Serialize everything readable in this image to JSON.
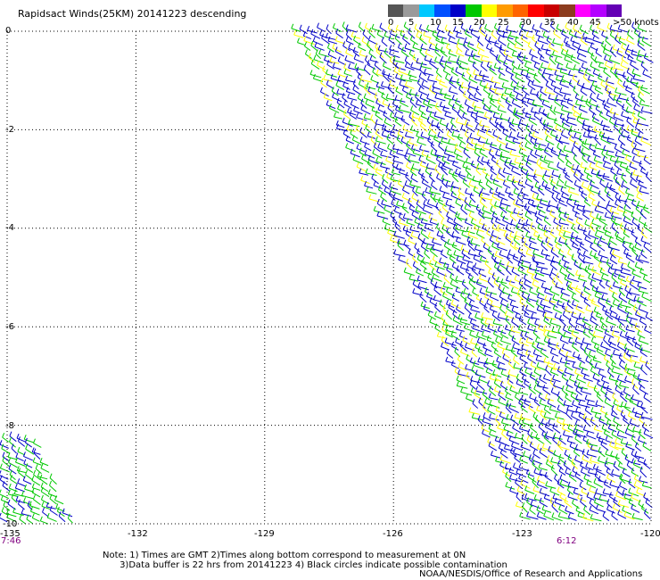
{
  "title": "Rapidsact Winds(25KM) 20141223 descending",
  "legend": {
    "labels": [
      "0",
      "5",
      "10",
      "15",
      "20",
      "25",
      "30",
      "35",
      "40",
      "45",
      ">50 knots"
    ],
    "colors": [
      "#555555",
      "#9a9a9a",
      "#00c8ff",
      "#0050ff",
      "#0000c8",
      "#00c800",
      "#ffff00",
      "#ff9b00",
      "#ff6400",
      "#ff0000",
      "#c80000",
      "#8c3c1e",
      "#ff00ff",
      "#b400ff",
      "#6400b4"
    ]
  },
  "axes": {
    "lat_labels": [
      "0",
      "-2",
      "-4",
      "-6",
      "-8",
      "-10"
    ],
    "lon_labels": [
      "-135",
      "-132",
      "-129",
      "-126",
      "-123",
      "-120"
    ]
  },
  "times": {
    "left": "7:46",
    "right": "6:12"
  },
  "notes": {
    "line1": "Note: 1) Times are GMT 2)Times along bottom correspond to measurement at 0N",
    "line2": "      3)Data buffer is 22 hrs from 20141223 4) Black circles indicate possible contamination"
  },
  "credit": "NOAA/NESDIS/Office of Research and Applications",
  "map_data": {
    "lon_range": [
      -135,
      -120
    ],
    "lat_range": [
      -10,
      0
    ],
    "swaths": [
      {
        "name": "main",
        "lat_top": 0,
        "lon_left_top": -128.2,
        "lat_bottom": -10,
        "lon_left_bottom": -122.8,
        "lon_right": -120,
        "colors": [
          "#0000c8",
          "#0000c8",
          "#00c800",
          "#0000c8",
          "#00c800",
          "#ffff00"
        ]
      },
      {
        "name": "corner",
        "lat_top": -8.3,
        "lon_left_top": -135,
        "lat_bottom": -10,
        "lon_left_bottom": -135,
        "lon_right_top": -134.3,
        "lon_right_bottom": -133.4,
        "colors": [
          "#00c800",
          "#00c800",
          "#0000c8"
        ]
      }
    ]
  }
}
